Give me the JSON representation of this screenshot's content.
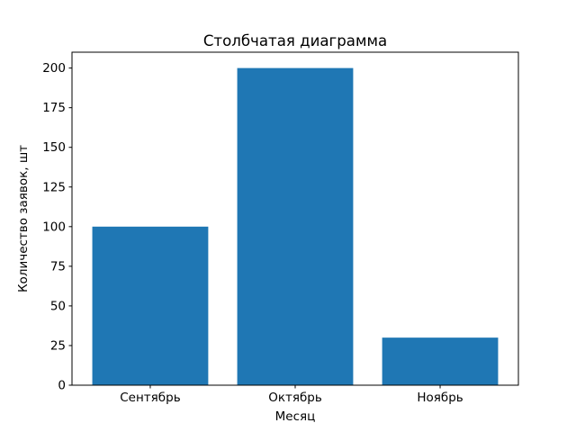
{
  "chart_data": {
    "type": "bar",
    "title": "Столбчатая диаграмма",
    "xlabel": "Месяц",
    "ylabel": "Количество заявок, шт",
    "categories": [
      "Сентябрь",
      "Октябрь",
      "Ноябрь"
    ],
    "values": [
      100,
      200,
      30
    ],
    "yticks": [
      0,
      25,
      50,
      75,
      100,
      125,
      150,
      175,
      200
    ],
    "ylim": [
      0,
      210
    ],
    "bar_width_fraction": 0.8,
    "legend": "none",
    "grid": "off",
    "colors": {
      "bar": "#1f77b4",
      "axis": "#000000",
      "text": "#000000",
      "background": "#ffffff"
    }
  }
}
